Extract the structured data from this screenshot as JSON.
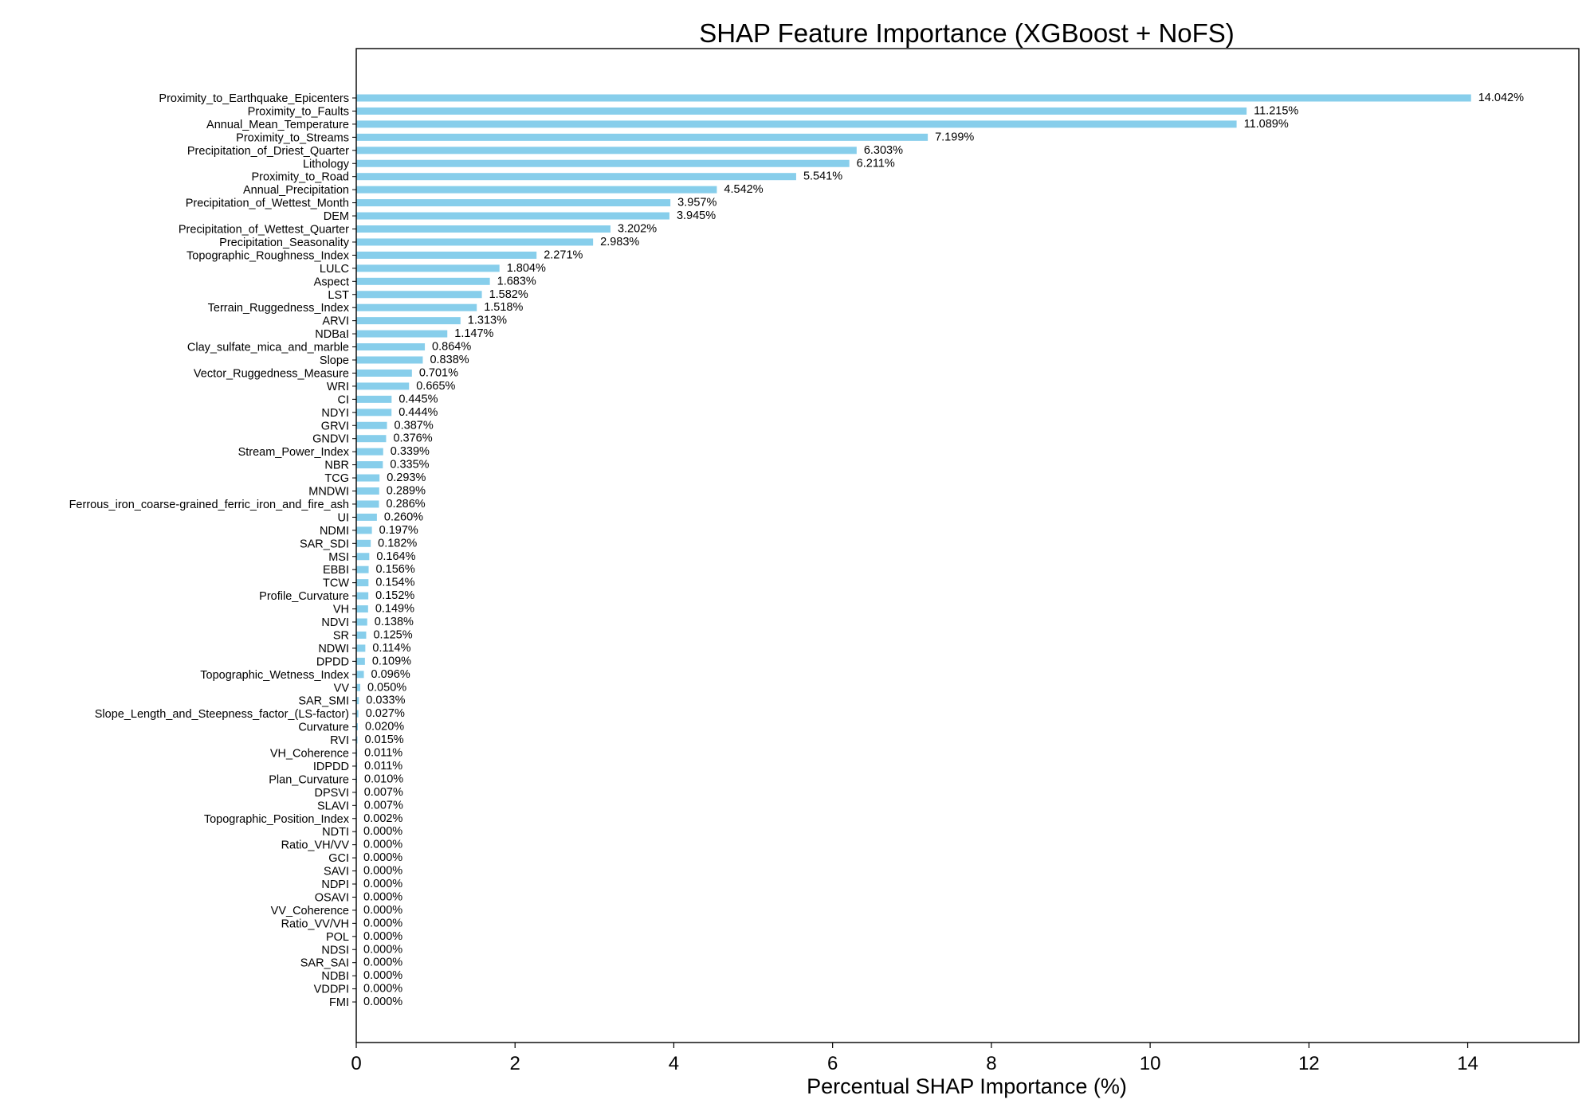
{
  "chart_data": {
    "type": "bar",
    "orientation": "horizontal",
    "title": "SHAP Feature Importance (XGBoost + NoFS)",
    "xlabel": "Percentual SHAP Importance (%)",
    "ylabel": "",
    "xlim": [
      0,
      15.4
    ],
    "xticks": [
      0,
      2,
      4,
      6,
      8,
      10,
      12,
      14
    ],
    "bar_color": "#87CEEB",
    "grid": false,
    "categories": [
      "Proximity_to_Earthquake_Epicenters",
      "Proximity_to_Faults",
      "Annual_Mean_Temperature",
      "Proximity_to_Streams",
      "Precipitation_of_Driest_Quarter",
      "Lithology",
      "Proximity_to_Road",
      "Annual_Precipitation",
      "Precipitation_of_Wettest_Month",
      "DEM",
      "Precipitation_of_Wettest_Quarter",
      "Precipitation_Seasonality",
      "Topographic_Roughness_Index",
      "LULC",
      "Aspect",
      "LST",
      "Terrain_Ruggedness_Index",
      "ARVI",
      "NDBaI",
      "Clay_sulfate_mica_and_marble",
      "Slope",
      "Vector_Ruggedness_Measure",
      "WRI",
      "CI",
      "NDYI",
      "GRVI",
      "GNDVI",
      "Stream_Power_Index",
      "NBR",
      "TCG",
      "MNDWI",
      "Ferrous_iron_coarse-grained_ferric_iron_and_fire_ash",
      "UI",
      "NDMI",
      "SAR_SDI",
      "MSI",
      "EBBI",
      "TCW",
      "Profile_Curvature",
      "VH",
      "NDVI",
      "SR",
      "NDWI",
      "DPDD",
      "Topographic_Wetness_Index",
      "VV",
      "SAR_SMI",
      "Slope_Length_and_Steepness_factor_(LS-factor)",
      "Curvature",
      "RVI",
      "VH_Coherence",
      "IDPDD",
      "Plan_Curvature",
      "DPSVI",
      "SLAVI",
      "Topographic_Position_Index",
      "NDTI",
      "Ratio_VH/VV",
      "GCI",
      "SAVI",
      "NDPI",
      "OSAVI",
      "VV_Coherence",
      "Ratio_VV/VH",
      "POL",
      "NDSI",
      "SAR_SAI",
      "NDBI",
      "VDDPI",
      "FMI"
    ],
    "values": [
      14.042,
      11.215,
      11.089,
      7.199,
      6.303,
      6.211,
      5.541,
      4.542,
      3.957,
      3.945,
      3.202,
      2.983,
      2.271,
      1.804,
      1.683,
      1.582,
      1.518,
      1.313,
      1.147,
      0.864,
      0.838,
      0.701,
      0.665,
      0.445,
      0.444,
      0.387,
      0.376,
      0.339,
      0.335,
      0.293,
      0.289,
      0.286,
      0.26,
      0.197,
      0.182,
      0.164,
      0.156,
      0.154,
      0.152,
      0.149,
      0.138,
      0.125,
      0.114,
      0.109,
      0.096,
      0.05,
      0.033,
      0.027,
      0.02,
      0.015,
      0.011,
      0.011,
      0.01,
      0.007,
      0.007,
      0.002,
      0.0,
      0.0,
      0.0,
      0.0,
      0.0,
      0.0,
      0.0,
      0.0,
      0.0,
      0.0,
      0.0,
      0.0,
      0.0,
      0.0
    ],
    "value_labels": [
      "14.042%",
      "11.215%",
      "11.089%",
      "7.199%",
      "6.303%",
      "6.211%",
      "5.541%",
      "4.542%",
      "3.957%",
      "3.945%",
      "3.202%",
      "2.983%",
      "2.271%",
      "1.804%",
      "1.683%",
      "1.582%",
      "1.518%",
      "1.313%",
      "1.147%",
      "0.864%",
      "0.838%",
      "0.701%",
      "0.665%",
      "0.445%",
      "0.444%",
      "0.387%",
      "0.376%",
      "0.339%",
      "0.335%",
      "0.293%",
      "0.289%",
      "0.286%",
      "0.260%",
      "0.197%",
      "0.182%",
      "0.164%",
      "0.156%",
      "0.154%",
      "0.152%",
      "0.149%",
      "0.138%",
      "0.125%",
      "0.114%",
      "0.109%",
      "0.096%",
      "0.050%",
      "0.033%",
      "0.027%",
      "0.020%",
      "0.015%",
      "0.011%",
      "0.011%",
      "0.010%",
      "0.007%",
      "0.007%",
      "0.002%",
      "0.000%",
      "0.000%",
      "0.000%",
      "0.000%",
      "0.000%",
      "0.000%",
      "0.000%",
      "0.000%",
      "0.000%",
      "0.000%",
      "0.000%",
      "0.000%",
      "0.000%",
      "0.000%"
    ]
  }
}
